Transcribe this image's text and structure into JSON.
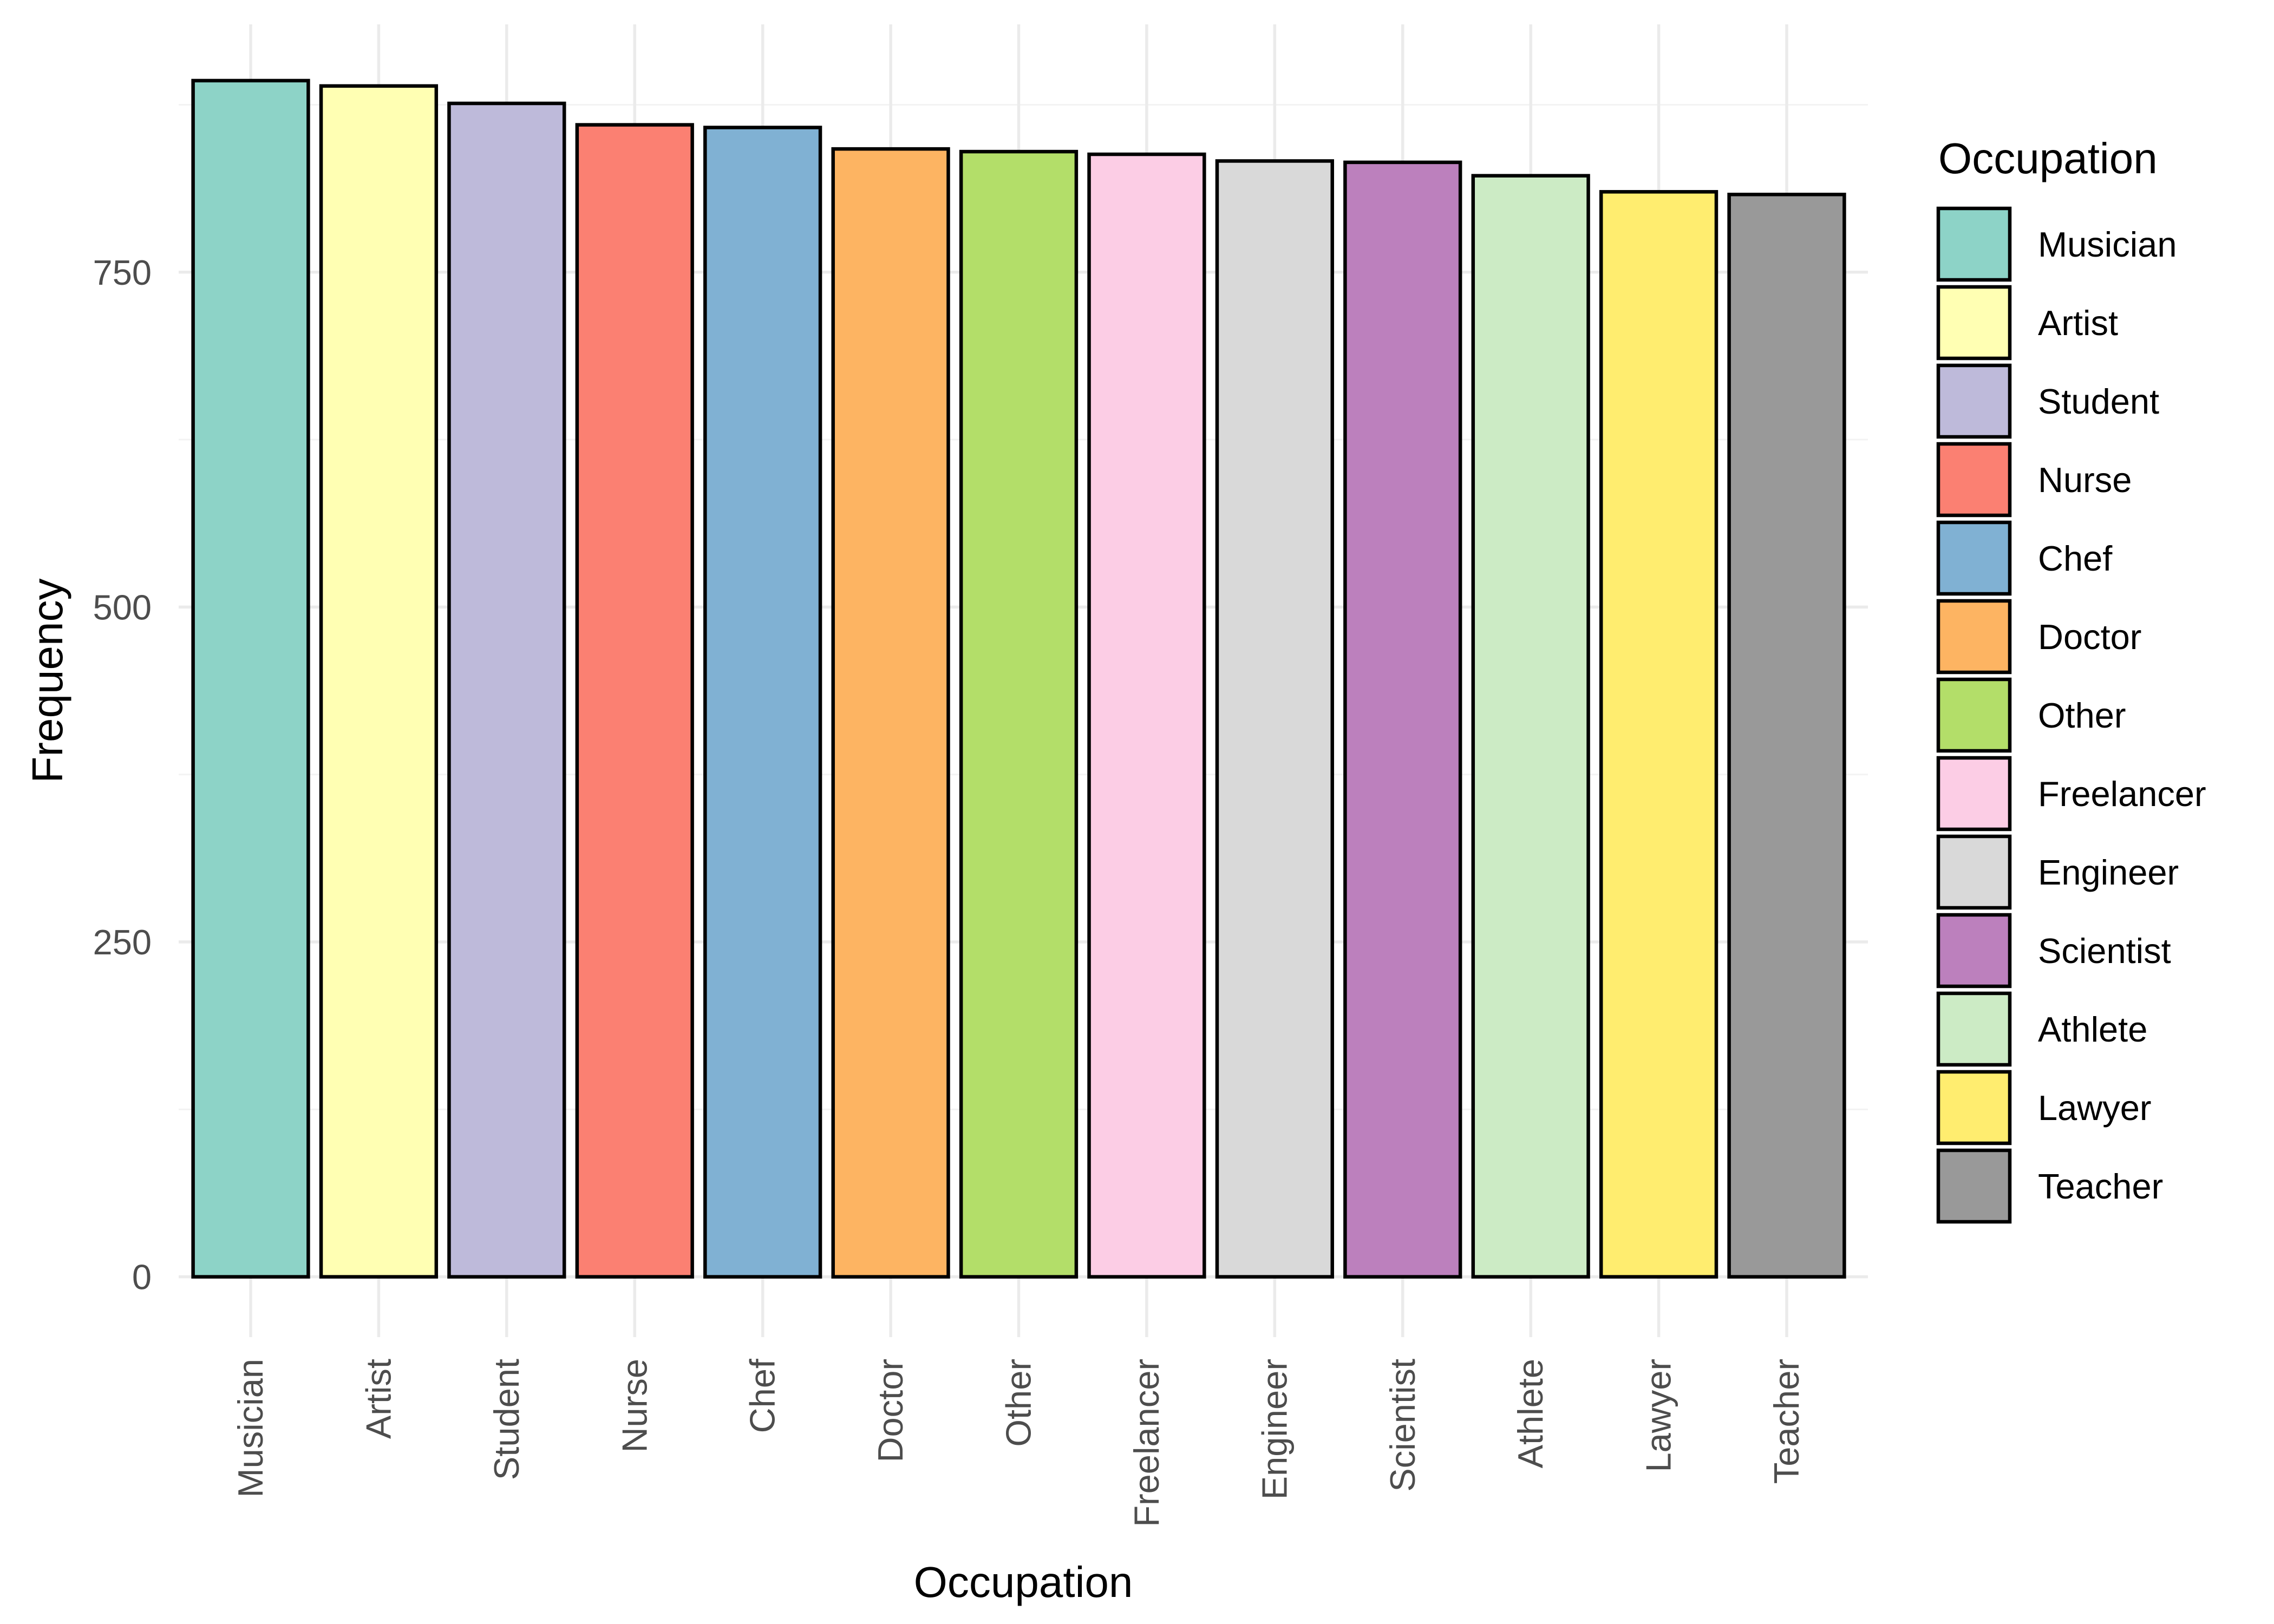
{
  "chart_data": {
    "type": "bar",
    "categories": [
      "Musician",
      "Artist",
      "Student",
      "Nurse",
      "Chef",
      "Doctor",
      "Other",
      "Freelancer",
      "Engineer",
      "Scientist",
      "Athlete",
      "Lawyer",
      "Teacher"
    ],
    "values": [
      893,
      889,
      876,
      860,
      858,
      842,
      840,
      838,
      833,
      832,
      822,
      810,
      808
    ],
    "colors": [
      "#8DD3C7",
      "#FFFFB3",
      "#BEBADA",
      "#FB8072",
      "#80B1D3",
      "#FDB462",
      "#B3DE69",
      "#FCCDE5",
      "#D9D9D9",
      "#BC80BD",
      "#CCEBC5",
      "#FFED6F",
      "#999999"
    ],
    "title": "",
    "xlabel": "Occupation",
    "ylabel": "Frequency",
    "ylim": [
      -45,
      935
    ],
    "yticks": [
      0,
      250,
      500,
      750
    ],
    "grid": true,
    "legend": {
      "title": "Occupation",
      "position": "right"
    }
  }
}
